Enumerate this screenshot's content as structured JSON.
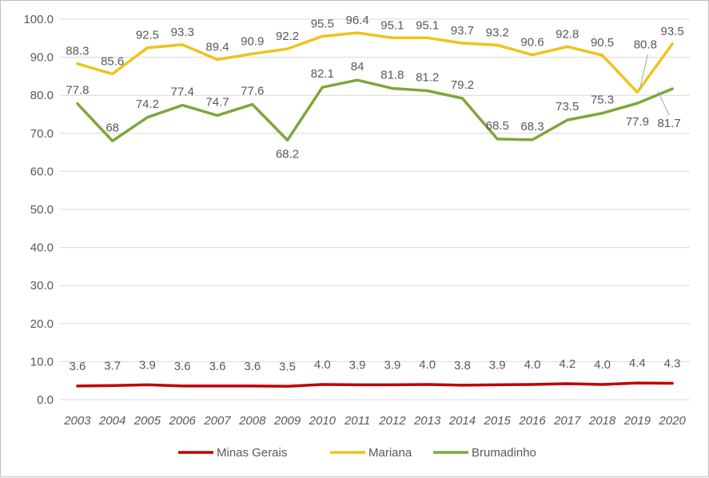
{
  "chart_data": {
    "type": "line",
    "categories": [
      "2003",
      "2004",
      "2005",
      "2006",
      "2007",
      "2008",
      "2009",
      "2010",
      "2011",
      "2012",
      "2013",
      "2014",
      "2015",
      "2016",
      "2017",
      "2018",
      "2019",
      "2020"
    ],
    "ylim": [
      0,
      100
    ],
    "yticks": [
      0,
      10,
      20,
      30,
      40,
      50,
      60,
      70,
      80,
      90,
      100
    ],
    "ytick_labels": [
      "0.0",
      "10.0",
      "20.0",
      "30.0",
      "40.0",
      "50.0",
      "60.0",
      "70.0",
      "80.0",
      "90.0",
      "100.0"
    ],
    "grid": true,
    "legend_position": "bottom",
    "series": [
      {
        "name": "Minas Gerais",
        "color": "#c00000",
        "values": [
          3.6,
          3.7,
          3.9,
          3.6,
          3.6,
          3.6,
          3.5,
          4.0,
          3.9,
          3.9,
          4.0,
          3.8,
          3.9,
          4.0,
          4.2,
          4.0,
          4.4,
          4.3
        ],
        "labels": [
          "3.6",
          "3.7",
          "3.9",
          "3.6",
          "3.6",
          "3.6",
          "3.5",
          "4.0",
          "3.9",
          "3.9",
          "4.0",
          "3.8",
          "3.9",
          "4.0",
          "4.2",
          "4.0",
          "4.4",
          "4.3"
        ]
      },
      {
        "name": "Mariana",
        "color": "#f0c21c",
        "values": [
          88.3,
          85.6,
          92.5,
          93.3,
          89.4,
          90.9,
          92.2,
          95.5,
          96.4,
          95.1,
          95.1,
          93.7,
          93.2,
          90.6,
          92.8,
          90.5,
          80.8,
          93.5
        ],
        "labels": [
          "88.3",
          "85.6",
          "92.5",
          "93.3",
          "89.4",
          "90.9",
          "92.2",
          "95.5",
          "96.4",
          "95.1",
          "95.1",
          "93.7",
          "93.2",
          "90.6",
          "92.8",
          "90.5",
          "80.8",
          "93.5"
        ]
      },
      {
        "name": "Brumadinho",
        "color": "#7fa63a",
        "values": [
          77.8,
          68,
          74.2,
          77.4,
          74.7,
          77.6,
          68.2,
          82.1,
          84,
          81.8,
          81.2,
          79.2,
          68.5,
          68.3,
          73.5,
          75.3,
          77.9,
          81.7
        ],
        "labels": [
          "77.8",
          "68",
          "74.2",
          "77.4",
          "74.7",
          "77.6",
          "68.2",
          "82.1",
          "84",
          "81.8",
          "81.2",
          "79.2",
          "68.5",
          "68.3",
          "73.5",
          "75.3",
          "77.9",
          "81.7"
        ]
      }
    ]
  }
}
